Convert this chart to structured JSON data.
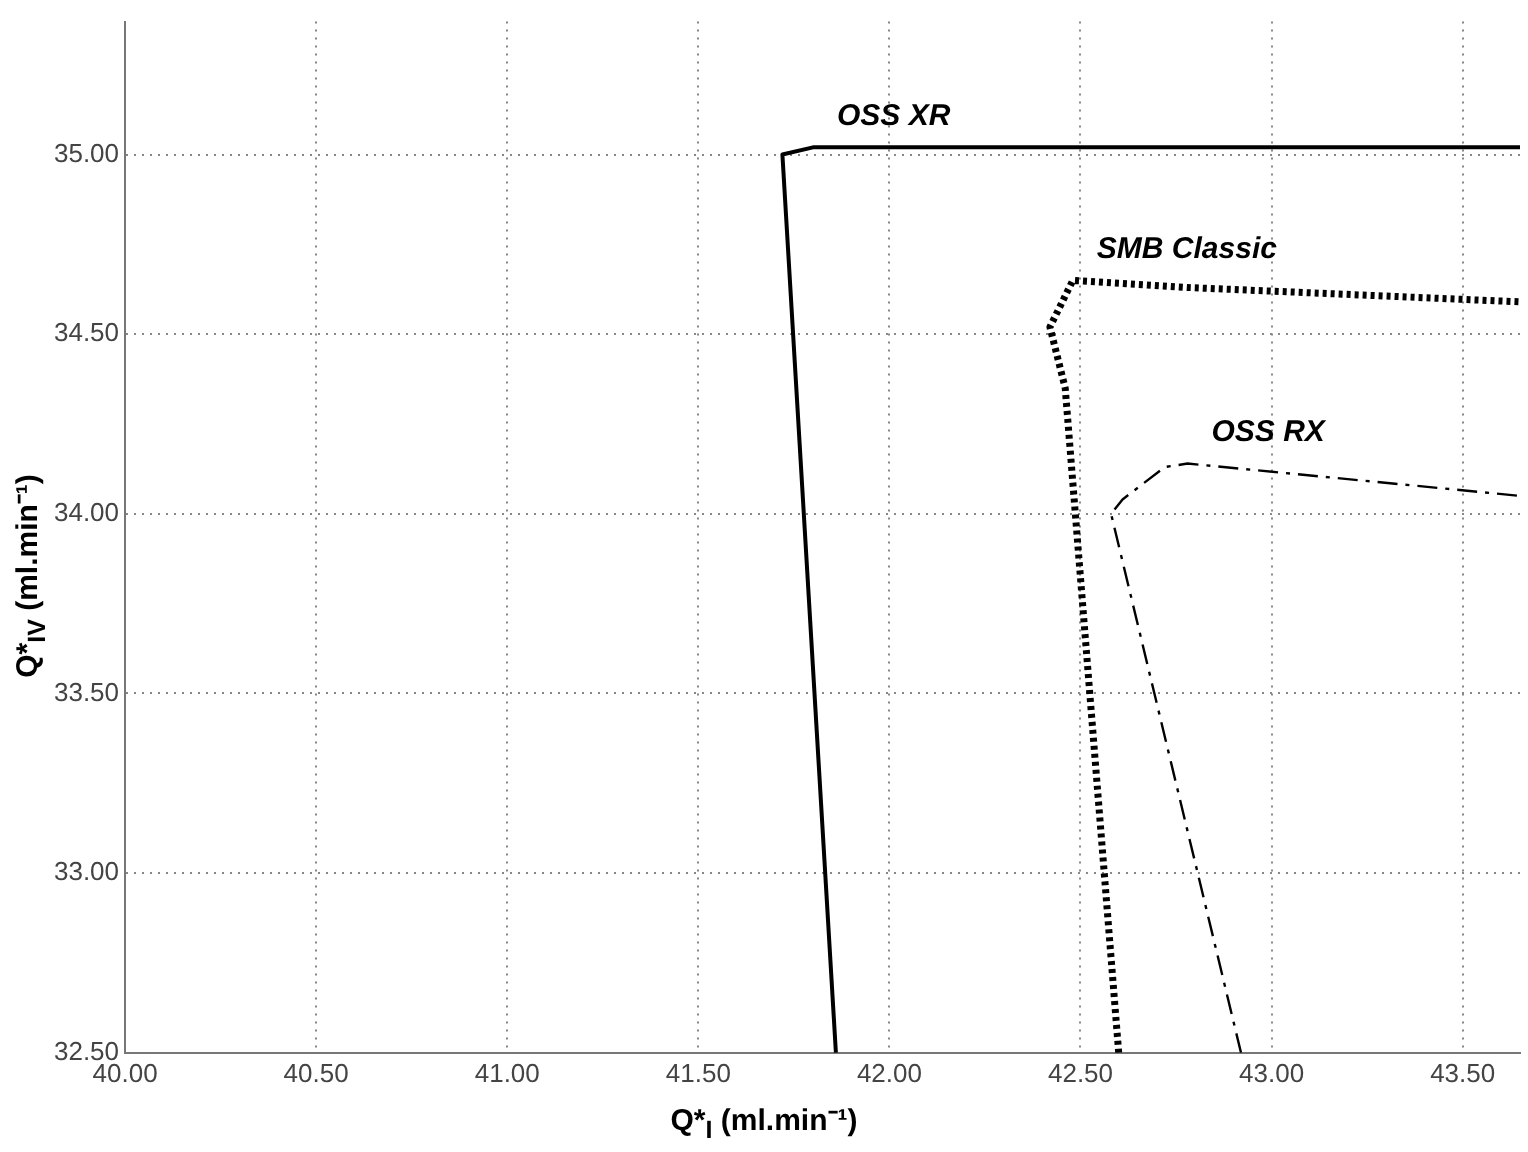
{
  "chart_data": {
    "type": "line",
    "xlabel": "Q*$_{I}$ (ml.min⁻¹)",
    "ylabel": "Q*$_{IV}$ (ml.min⁻¹)",
    "xlim": [
      40,
      43.65
    ],
    "ylim": [
      32.5,
      35.37
    ],
    "xticks": [
      {
        "value": 40,
        "label": "40.00"
      },
      {
        "value": 40.5,
        "label": "40.50"
      },
      {
        "value": 41,
        "label": "41.00"
      },
      {
        "value": 41.5,
        "label": "41.50"
      },
      {
        "value": 42,
        "label": "42.00"
      },
      {
        "value": 42.5,
        "label": "42.50"
      },
      {
        "value": 43,
        "label": "43.00"
      },
      {
        "value": 43.5,
        "label": "43.50"
      }
    ],
    "yticks": [
      {
        "value": 32.5,
        "label": "32.50"
      },
      {
        "value": 33,
        "label": "33.00"
      },
      {
        "value": 33.5,
        "label": "33.50"
      },
      {
        "value": 34,
        "label": "34.00"
      },
      {
        "value": 34.5,
        "label": "34.50"
      },
      {
        "value": 35,
        "label": "35.00"
      }
    ],
    "grid": true,
    "legend": false,
    "marker": "none",
    "series": [
      {
        "name": "OSS XR",
        "color": "#000000",
        "line_style": "solid",
        "x": [
          41.86,
          41.72,
          41.8,
          43.65
        ],
        "values": [
          32.5,
          35.0,
          35.02,
          35.02
        ]
      },
      {
        "name": "SMB Classic",
        "color": "#000000",
        "line_style": "dotted",
        "x": [
          42.6,
          42.46,
          42.42,
          42.48,
          42.78,
          43.65
        ],
        "values": [
          32.5,
          34.35,
          34.52,
          34.65,
          34.63,
          34.59
        ]
      },
      {
        "name": "OSS RX",
        "color": "#000000",
        "line_style": "dashed",
        "x": [
          42.92,
          42.58,
          42.61,
          42.72,
          42.78,
          43.65
        ],
        "values": [
          32.5,
          34.0,
          34.04,
          34.13,
          34.14,
          34.05
        ]
      }
    ]
  }
}
